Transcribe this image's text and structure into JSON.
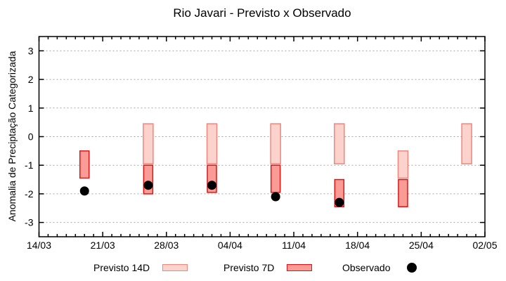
{
  "title": "Rio Javari - Previsto x Observado",
  "legend": {
    "items": [
      {
        "label": "Previsto 14D"
      },
      {
        "label": "Previsto 7D"
      },
      {
        "label": "Observado"
      }
    ]
  },
  "chart_data": {
    "type": "bar",
    "subtype": "range-bars-with-scatter",
    "title": "Rio Javari - Previsto x Observado",
    "xlabel": "",
    "ylabel": "Anomalia de Preciptação Categorizada",
    "grid": true,
    "legend_position": "bottom-outside",
    "ylim": [
      -3.5,
      3.5
    ],
    "y_ticks": [
      3,
      2,
      1,
      0,
      -1,
      -2,
      -3
    ],
    "x_axis": {
      "tick_labels": [
        "14/03",
        "21/03",
        "28/03",
        "04/04",
        "11/04",
        "18/04",
        "25/04",
        "02/05"
      ],
      "tick_days": [
        0,
        7,
        14,
        21,
        28,
        35,
        42,
        49
      ],
      "total_days": 49,
      "minor_tick_interval_days": 1
    },
    "series": [
      {
        "name": "Previsto 14D",
        "type": "range_bar",
        "fill": "#fcd2cc",
        "stroke": "#f0867c"
      },
      {
        "name": "Previsto 7D",
        "type": "range_bar",
        "fill": "#fb9b96",
        "stroke": "#e01414"
      },
      {
        "name": "Observado",
        "type": "scatter",
        "color": "#000000"
      }
    ],
    "clusters": [
      {
        "date": "19/03",
        "day": 5,
        "previsto_14d": null,
        "previsto_7d": [
          -1.45,
          -0.5
        ],
        "observado": -1.9
      },
      {
        "date": "26/03",
        "day": 12,
        "previsto_14d": [
          -0.95,
          0.45
        ],
        "previsto_7d": [
          -2.0,
          -1.0
        ],
        "observado": -1.7
      },
      {
        "date": "02/04",
        "day": 19,
        "previsto_14d": [
          -0.95,
          0.45
        ],
        "previsto_7d": [
          -1.95,
          -1.0
        ],
        "observado": -1.7
      },
      {
        "date": "09/04",
        "day": 26,
        "previsto_14d": [
          -0.95,
          0.45
        ],
        "previsto_7d": [
          -1.95,
          -1.0
        ],
        "observado": -2.1
      },
      {
        "date": "16/04",
        "day": 33,
        "previsto_14d": [
          -0.95,
          0.45
        ],
        "previsto_7d": [
          -2.45,
          -1.5
        ],
        "observado": -2.3
      },
      {
        "date": "23/04",
        "day": 40,
        "previsto_14d": [
          -1.45,
          -0.5
        ],
        "previsto_7d": [
          -2.45,
          -1.5
        ],
        "observado": null
      },
      {
        "date": "30/04",
        "day": 47,
        "previsto_14d": [
          -0.95,
          0.45
        ],
        "previsto_7d": null,
        "observado": null
      }
    ]
  }
}
